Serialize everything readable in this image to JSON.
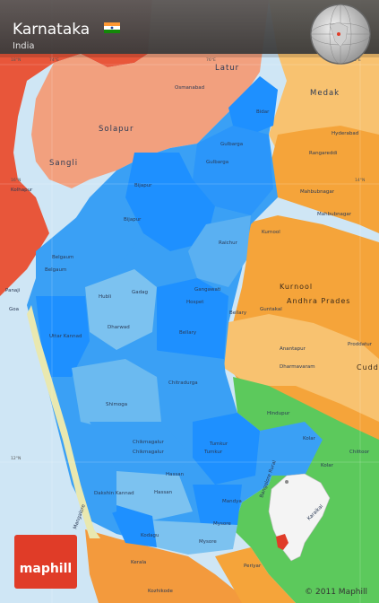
{
  "header": {
    "title": "Karnataka",
    "subtitle": "India"
  },
  "brand": {
    "name": "maphill",
    "copyright": "© 2011 Maphill"
  },
  "colors": {
    "sea": "#cfe6f5",
    "karnataka_dark": "#1e90ff",
    "karnataka_mid": "#3aa0f5",
    "karnataka_light": "#7cc2f0",
    "maharashtra_red": "#e8563a",
    "maharashtra_salmon": "#f2a07e",
    "andhra_orange": "#f5a43a",
    "andhra_light": "#f8c270",
    "tamil_green": "#5cc95c",
    "kerala_orange": "#f39a3d",
    "header_bg": "#4a4a4a",
    "maphill_red": "#e03c28"
  },
  "labels": {
    "region_large": [
      "Latur",
      "Osmanabad",
      "Bidar",
      "Medak",
      "Solapur",
      "Gulbarga",
      "Sangli",
      "Rangareddi",
      "Bijapur",
      "Raichur",
      "Mahbubnagar",
      "Belgaum",
      "Kurnool",
      "Andhra Prades",
      "Dharwad",
      "Bellary",
      "Anantapur",
      "Cudd",
      "Uttar Kannad",
      "Chitradurga",
      "Shimoga",
      "Tumkur",
      "Kolar",
      "Chikmagalur",
      "Hassan",
      "Mandya",
      "Mysore",
      "Kerala",
      "Periyar"
    ],
    "cities": [
      "Gulbarga",
      "Hyderabad",
      "Mahbubnagar",
      "Bijapur",
      "Kolhapur",
      "Belgaum",
      "Hubli",
      "Gadag",
      "Gangawati",
      "Hospet",
      "Bellary",
      "Guntakal",
      "Panaji",
      "Kurnool",
      "Proddatur",
      "Dharmavaram",
      "Hindupur",
      "Chikmagalur",
      "Tumkur",
      "Kolar",
      "Hassan",
      "Dakshin Kannad",
      "Kodagu",
      "Kozhikode",
      "Bangalore Rural",
      "Karaikal",
      "Mangalore",
      "Mysore",
      "Goa",
      "Chittoor"
    ],
    "degrees": [
      "74°E",
      "76°E",
      "78°E",
      "18°N",
      "16°N",
      "14°N",
      "12°N"
    ]
  }
}
